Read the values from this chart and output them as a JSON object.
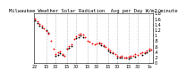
{
  "title": "Milwaukee Weather Solar Radiation  Avg per Day W/m2/minute",
  "background_color": "#ffffff",
  "plot_bg_color": "#ffffff",
  "grid_color": "#bbbbbb",
  "y_min": 0.0,
  "y_max": 1.8,
  "yticks": [
    0.0,
    0.2,
    0.4,
    0.6,
    0.8,
    1.0,
    1.2,
    1.4,
    1.6,
    1.8
  ],
  "ytick_labels": [
    "0",
    ".2",
    ".4",
    ".6",
    ".8",
    "1",
    "1.2",
    "1.4",
    "1.6",
    "1.8"
  ],
  "num_points": 52,
  "vline_positions": [
    5,
    9,
    14,
    18,
    23,
    27,
    32,
    36,
    41,
    45,
    50
  ],
  "x_tick_positions": [
    0,
    5,
    9,
    14,
    18,
    23,
    27,
    32,
    36,
    41,
    45,
    50,
    51
  ],
  "x_tick_labels": [
    "22",
    "15",
    "30",
    "15",
    "30",
    "15",
    "30",
    "15",
    "30",
    "15",
    "30",
    "1s",
    ""
  ],
  "black_points_x": [
    0,
    1,
    2,
    3,
    5,
    6,
    9,
    10,
    11,
    12,
    14,
    15,
    16,
    18,
    19,
    20,
    21,
    28,
    29,
    30,
    32,
    33,
    34,
    36,
    37,
    38,
    40,
    41,
    42,
    44,
    47,
    48,
    49,
    50
  ],
  "black_points_y": [
    1.55,
    1.45,
    1.35,
    1.3,
    1.2,
    1.1,
    0.25,
    0.3,
    0.35,
    0.28,
    0.5,
    0.55,
    0.6,
    0.9,
    0.95,
    1.0,
    0.95,
    0.7,
    0.65,
    0.6,
    0.45,
    0.4,
    0.35,
    0.2,
    0.18,
    0.2,
    0.18,
    0.15,
    0.18,
    0.22,
    0.3,
    0.35,
    0.4,
    0.45
  ],
  "red_points_x": [
    0,
    1,
    2,
    3,
    4,
    5,
    6,
    7,
    8,
    9,
    10,
    11,
    12,
    13,
    14,
    15,
    16,
    17,
    18,
    19,
    20,
    21,
    22,
    23,
    24,
    25,
    26,
    27,
    28,
    29,
    30,
    31,
    32,
    33,
    34,
    35,
    36,
    37,
    38,
    39,
    40,
    41,
    42,
    43,
    44,
    45,
    46,
    47,
    48,
    49,
    50,
    51
  ],
  "red_points_y": [
    1.62,
    1.52,
    1.42,
    1.37,
    1.27,
    1.17,
    1.07,
    0.82,
    0.52,
    0.32,
    0.37,
    0.42,
    0.32,
    0.27,
    0.52,
    0.62,
    0.67,
    0.87,
    0.97,
    1.02,
    1.07,
    1.02,
    0.92,
    0.82,
    0.77,
    0.72,
    0.67,
    0.72,
    0.74,
    0.7,
    0.64,
    0.57,
    0.5,
    0.44,
    0.4,
    0.32,
    0.24,
    0.22,
    0.24,
    0.2,
    0.18,
    0.22,
    0.24,
    0.27,
    0.32,
    0.3,
    0.34,
    0.37,
    0.4,
    0.44,
    0.5,
    0.47
  ],
  "title_fontsize": 4.0,
  "tick_fontsize": 3.5,
  "marker_size": 1.8
}
